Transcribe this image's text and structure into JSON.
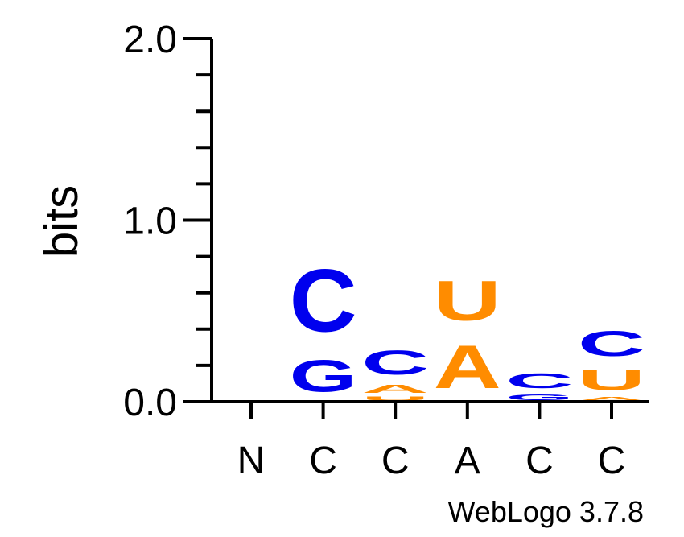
{
  "colors": {
    "C": "#0000ee",
    "G": "#0000ee",
    "A": "#ff8c00",
    "U": "#ff8c00",
    "axis": "#000000"
  },
  "footer": "WebLogo 3.7.8",
  "chart_data": {
    "type": "sequence-logo",
    "ylabel": "bits",
    "ylim": [
      0,
      2.0
    ],
    "y_ticks": [
      "0.0",
      "1.0",
      "2.0"
    ],
    "positions": [
      {
        "label": "N",
        "letters": []
      },
      {
        "label": "C",
        "letters": [
          {
            "letter": "G",
            "bits": 0.28
          },
          {
            "letter": "C",
            "bits": 0.55
          }
        ]
      },
      {
        "label": "C",
        "letters": [
          {
            "letter": "U",
            "bits": 0.035
          },
          {
            "letter": "A",
            "bits": 0.075
          },
          {
            "letter": "C",
            "bits": 0.21
          }
        ]
      },
      {
        "label": "A",
        "letters": [
          {
            "letter": "A",
            "bits": 0.38
          },
          {
            "letter": "U",
            "bits": 0.35
          }
        ]
      },
      {
        "label": "C",
        "letters": [
          {
            "letter": "G",
            "bits": 0.05
          },
          {
            "letter": "C",
            "bits": 0.13
          }
        ]
      },
      {
        "label": "C",
        "letters": [
          {
            "letter": "A",
            "bits": 0.03
          },
          {
            "letter": "U",
            "bits": 0.18
          },
          {
            "letter": "C",
            "bits": 0.22
          }
        ]
      }
    ]
  }
}
